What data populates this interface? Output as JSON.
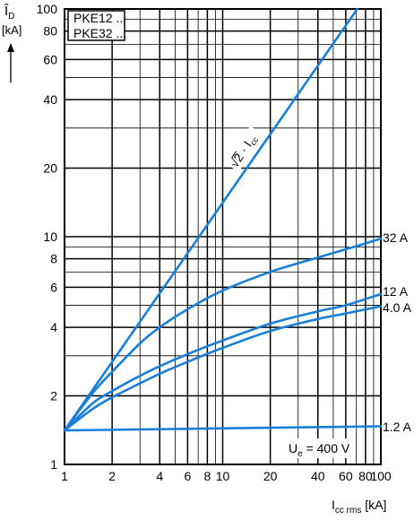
{
  "chart_data": {
    "type": "line",
    "title": "",
    "xscale": "log",
    "yscale": "log",
    "xlim": [
      1,
      100
    ],
    "ylim": [
      1,
      100
    ],
    "grid": "on",
    "legend": "none",
    "xlabel": {
      "main": "I",
      "sub": "cc rms",
      "unit": " [kA]"
    },
    "ylabel": {
      "main": "Î",
      "sub": "D",
      "unit": "[kA]"
    },
    "x_ticks": [
      1,
      2,
      4,
      6,
      8,
      10,
      20,
      40,
      60,
      80,
      100
    ],
    "x_tick_labels": [
      "1",
      "2",
      "4",
      "6",
      "8",
      "10",
      "20",
      "40",
      "60",
      "80",
      "100"
    ],
    "y_ticks": [
      1,
      2,
      4,
      6,
      8,
      10,
      20,
      40,
      60,
      80,
      100
    ],
    "y_tick_labels": [
      "1",
      "2",
      "4",
      "6",
      "8",
      "10",
      "20",
      "40",
      "60",
      "80",
      "100"
    ],
    "box_lines": [
      "PKE12 ...",
      "PKE32 ..."
    ],
    "condition": {
      "main": "U",
      "sub": "e",
      "rest": " = 400 V"
    },
    "sqrt2_label": {
      "root": "√2",
      "rest": " · I",
      "sub": "cc"
    },
    "line_color": "#1a7fd6",
    "series": [
      {
        "name": "sqrt2_Icc",
        "x": [
          1,
          71
        ],
        "y": [
          1.41,
          100
        ]
      },
      {
        "name": "32 A",
        "x": [
          1,
          1.5,
          2,
          3,
          4,
          6,
          10,
          20,
          40,
          60,
          100
        ],
        "y": [
          1.41,
          2.05,
          2.55,
          3.4,
          4.0,
          4.8,
          5.8,
          7.0,
          8.1,
          8.8,
          9.8
        ]
      },
      {
        "name": "12 A",
        "x": [
          1,
          1.5,
          2,
          3,
          4,
          6,
          10,
          20,
          40,
          60,
          100
        ],
        "y": [
          1.41,
          1.85,
          2.1,
          2.45,
          2.7,
          3.05,
          3.5,
          4.15,
          4.7,
          5.0,
          5.6
        ]
      },
      {
        "name": "4.0 A",
        "x": [
          1,
          1.5,
          2,
          3,
          4,
          6,
          10,
          20,
          40,
          60,
          100
        ],
        "y": [
          1.41,
          1.75,
          1.97,
          2.27,
          2.5,
          2.82,
          3.25,
          3.85,
          4.35,
          4.6,
          4.95
        ]
      },
      {
        "name": "1.2 A",
        "x": [
          1,
          100
        ],
        "y": [
          1.41,
          1.47
        ]
      }
    ]
  }
}
